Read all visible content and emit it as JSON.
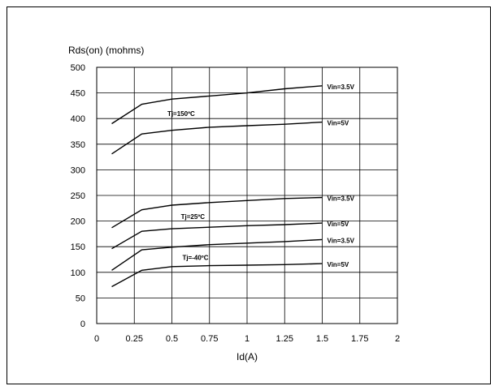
{
  "chart_data": {
    "type": "line",
    "title": "",
    "ylabel": "Rds(on) (mohms)",
    "xlabel": "Id(A)",
    "xlim": [
      0,
      2
    ],
    "ylim": [
      0,
      500
    ],
    "xticks": [
      0,
      0.25,
      0.5,
      0.75,
      1,
      1.25,
      1.5,
      1.75,
      2
    ],
    "xtick_labels": [
      "0",
      "0.25",
      "0.5",
      "0.75",
      "1",
      "1.25",
      "1.5",
      "1.75",
      "2"
    ],
    "yticks": [
      0,
      50,
      100,
      150,
      200,
      250,
      300,
      350,
      400,
      450,
      500
    ],
    "grid": true,
    "series": [
      {
        "name": "Vin=3.5V",
        "group": "Tj=150ºC",
        "x": [
          0.1,
          0.3,
          0.5,
          0.75,
          1.0,
          1.25,
          1.5
        ],
        "y": [
          390,
          428,
          438,
          444,
          450,
          458,
          464
        ]
      },
      {
        "name": "Vin=5V",
        "group": "Tj=150ºC",
        "x": [
          0.1,
          0.3,
          0.5,
          0.75,
          1.0,
          1.25,
          1.5
        ],
        "y": [
          331,
          370,
          377,
          383,
          386,
          389,
          393
        ]
      },
      {
        "name": "Vin=3.5V",
        "group": "Tj=25ºC",
        "x": [
          0.1,
          0.3,
          0.5,
          0.75,
          1.0,
          1.25,
          1.5
        ],
        "y": [
          187,
          222,
          231,
          236,
          240,
          244,
          246
        ]
      },
      {
        "name": "Vin=5V",
        "group": "Tj=25ºC",
        "x": [
          0.1,
          0.3,
          0.5,
          0.75,
          1.0,
          1.25,
          1.5
        ],
        "y": [
          146,
          180,
          185,
          188,
          191,
          193,
          196
        ]
      },
      {
        "name": "Vin=3.5V",
        "group": "Tj=-40ºC",
        "x": [
          0.1,
          0.3,
          0.5,
          0.75,
          1.0,
          1.25,
          1.5
        ],
        "y": [
          104,
          144,
          149,
          154,
          157,
          160,
          164
        ]
      },
      {
        "name": "Vin=5V",
        "group": "Tj=-40ºC",
        "x": [
          0.1,
          0.3,
          0.5,
          0.75,
          1.0,
          1.25,
          1.5
        ],
        "y": [
          72,
          104,
          111,
          113,
          114,
          115,
          117
        ]
      }
    ],
    "annotations": [
      {
        "text": "Tj=150ºC",
        "x": 0.47,
        "y": 410
      },
      {
        "text": "Tj=25ºC",
        "x": 0.56,
        "y": 209
      },
      {
        "text": "Tj=-40ºC",
        "x": 0.57,
        "y": 129
      }
    ]
  }
}
